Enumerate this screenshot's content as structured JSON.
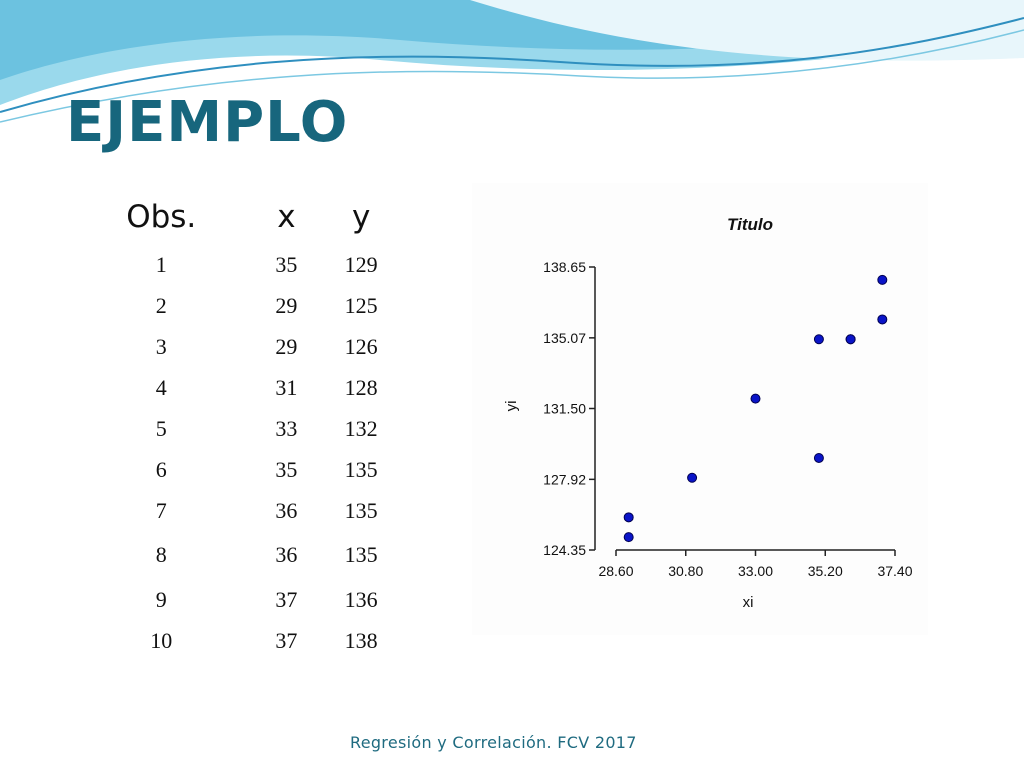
{
  "slide": {
    "title": "EJEMPLO",
    "footer": "Regresión y Correlación. FCV 2017"
  },
  "table": {
    "headers": [
      "Obs.",
      "x",
      "y"
    ],
    "rows": [
      [
        "1",
        "35",
        "129"
      ],
      [
        "2",
        "29",
        "125"
      ],
      [
        "3",
        "29",
        "126"
      ],
      [
        "4",
        "31",
        "128"
      ],
      [
        "5",
        "33",
        "132"
      ],
      [
        "6",
        "35",
        "135"
      ],
      [
        "7",
        "36",
        "135"
      ],
      [
        "8",
        "36",
        "135"
      ],
      [
        "9",
        "37",
        "136"
      ],
      [
        "10",
        "37",
        "138"
      ]
    ]
  },
  "colors": {
    "title": "#17667d",
    "marker_fill": "#0a14c8",
    "marker_stroke": "#000050",
    "wave_light": "#8fd6ea",
    "wave_dark": "#3d9fc6"
  },
  "chart_data": {
    "type": "scatter",
    "title": "Titulo",
    "xlabel": "xi",
    "ylabel": "yi",
    "xlim": [
      28.6,
      37.4
    ],
    "ylim": [
      124.35,
      138.65
    ],
    "xticks": [
      "28.60",
      "30.80",
      "33.00",
      "35.20",
      "37.40"
    ],
    "yticks": [
      "124.35",
      "127.92",
      "131.50",
      "135.07",
      "138.65"
    ],
    "grid": false,
    "legend": "none",
    "series": [
      {
        "x": [
          35,
          29,
          29,
          31,
          33,
          35,
          36,
          36,
          37,
          37
        ],
        "y": [
          129,
          125,
          126,
          128,
          132,
          135,
          135,
          135,
          136,
          138
        ]
      }
    ]
  }
}
